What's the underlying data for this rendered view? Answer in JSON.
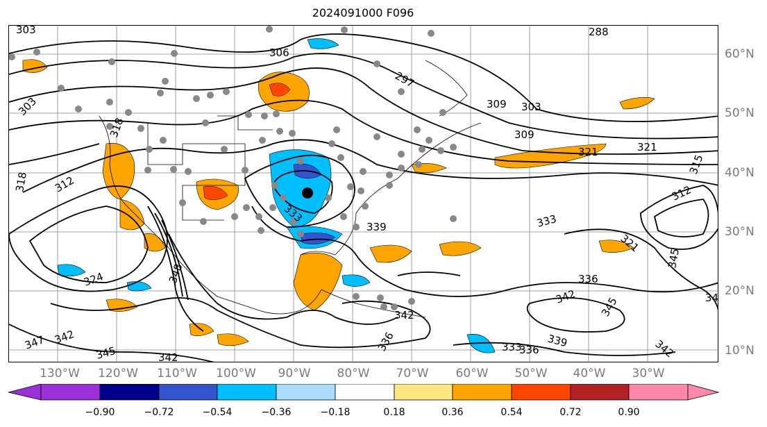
{
  "title": "2024091000 F096",
  "lon_labels": [
    "130°W",
    "120°W",
    "110°W",
    "100°W",
    "90°W",
    "80°W",
    "70°W",
    "60°W",
    "50°W",
    "40°W",
    "30°W"
  ],
  "lat_labels": [
    "60°N",
    "50°N",
    "40°N",
    "30°N",
    "20°N",
    "10°N"
  ],
  "colorbar": {
    "ticks": [
      "−0.90",
      "−0.72",
      "−0.54",
      "−0.36",
      "−0.18",
      "0.18",
      "0.36",
      "0.54",
      "0.72",
      "0.90"
    ],
    "colors": [
      "#9b30d9",
      "#00008b",
      "#3355cc",
      "#00bfff",
      "#aadcff",
      "#ffffff",
      "#ffe680",
      "#ffa500",
      "#ff4500",
      "#b22222",
      "#ff88aa"
    ]
  },
  "contour_labels": [
    "303",
    "306",
    "297",
    "309",
    "303",
    "309",
    "318",
    "321",
    "321",
    "315",
    "312",
    "318",
    "312",
    "333",
    "339",
    "333",
    "321",
    "324",
    "348",
    "336",
    "342",
    "345",
    "342",
    "345",
    "342",
    "336",
    "339",
    "333",
    "336",
    "342",
    "347",
    "342",
    "345",
    "342",
    "288",
    "318"
  ],
  "map": {
    "center_marker": "black-dot",
    "station_color": "#888888"
  }
}
